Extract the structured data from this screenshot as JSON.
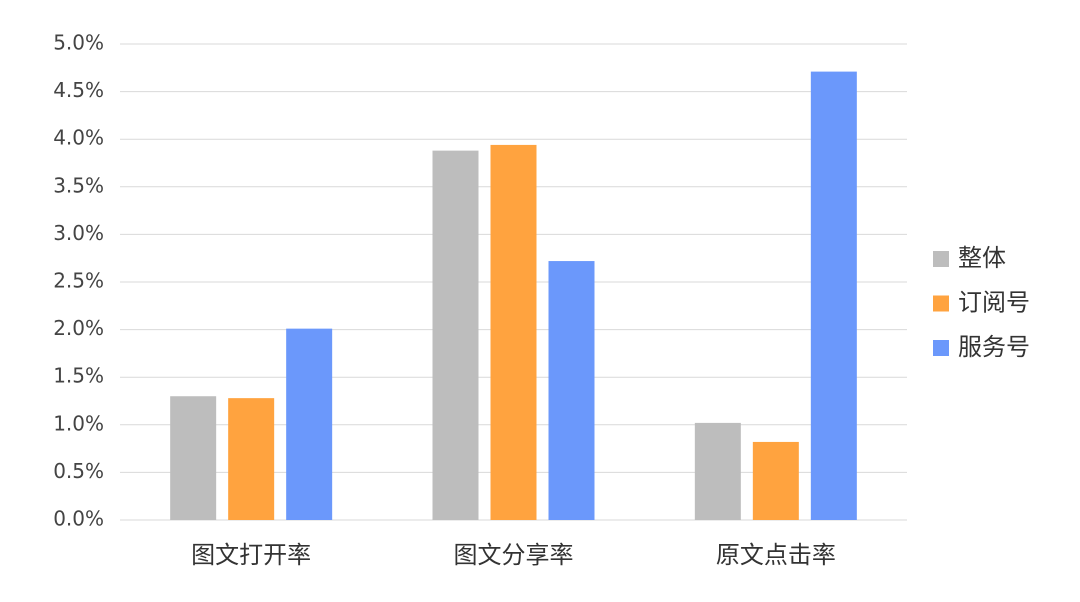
{
  "chart_data": {
    "type": "bar",
    "categories": [
      "图文打开率",
      "图文分享率",
      "原文点击率"
    ],
    "series": [
      {
        "name": "整体",
        "color": "#bdbdbd",
        "values": [
          1.3,
          3.88,
          1.02
        ]
      },
      {
        "name": "订阅号",
        "color": "#ffa33f",
        "values": [
          1.28,
          3.94,
          0.82
        ]
      },
      {
        "name": "服务号",
        "color": "#6b98fb",
        "values": [
          2.01,
          2.72,
          4.71
        ]
      }
    ],
    "ylim": [
      0,
      5
    ],
    "yticks": [
      {
        "value": 0,
        "label": "0.0%"
      },
      {
        "value": 0.5,
        "label": "0.5%"
      },
      {
        "value": 1,
        "label": "1.0%"
      },
      {
        "value": 1.5,
        "label": "1.5%"
      },
      {
        "value": 2,
        "label": "2.0%"
      },
      {
        "value": 2.5,
        "label": "2.5%"
      },
      {
        "value": 3,
        "label": "3.0%"
      },
      {
        "value": 3.5,
        "label": "3.5%"
      },
      {
        "value": 4,
        "label": "4.0%"
      },
      {
        "value": 4.5,
        "label": "4.5%"
      },
      {
        "value": 5,
        "label": "5.0%"
      }
    ],
    "grid": true,
    "legend": "right"
  }
}
